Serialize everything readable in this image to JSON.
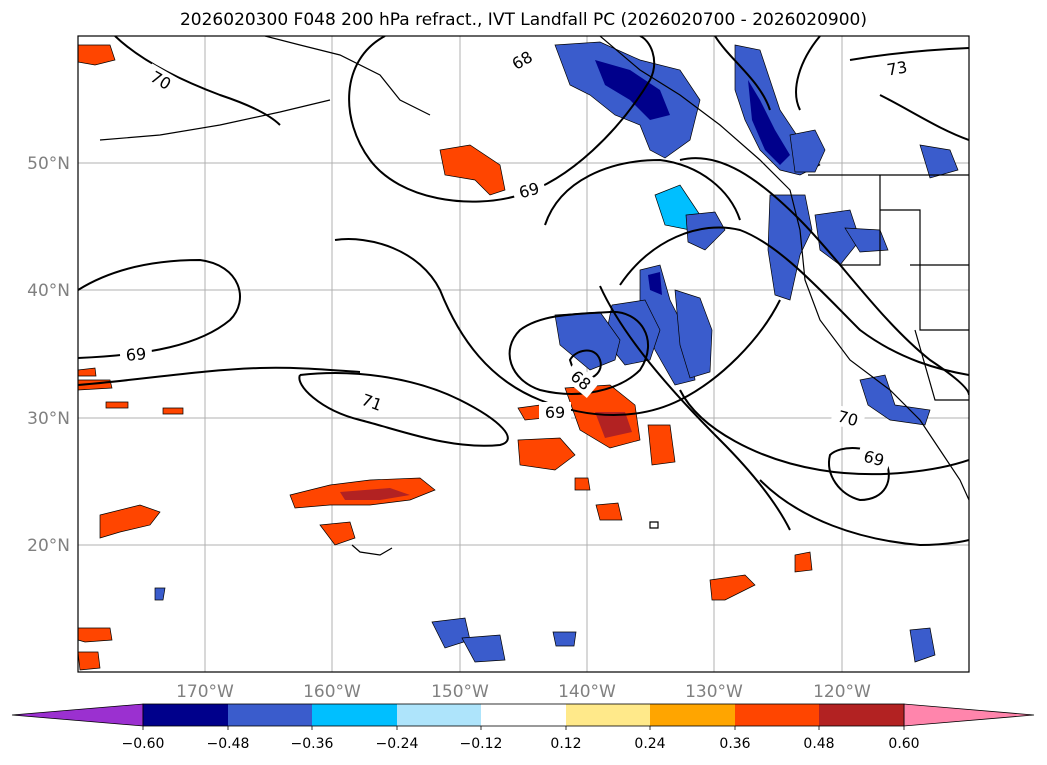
{
  "title": "2026020300 F048 200 hPa refract., IVT Landfall PC (2026020700 - 2026020900)",
  "axes": {
    "lat_labels": [
      "50°N",
      "40°N",
      "30°N",
      "20°N"
    ],
    "lon_labels": [
      "170°W",
      "160°W",
      "150°W",
      "140°W",
      "130°W",
      "120°W"
    ]
  },
  "colorbar": {
    "ticks": [
      "−0.60",
      "−0.48",
      "−0.36",
      "−0.24",
      "−0.12",
      "0.12",
      "0.24",
      "0.36",
      "0.48",
      "0.60"
    ],
    "colors": [
      "#9b30d0",
      "#00008b",
      "#3a5ccc",
      "#00bfff",
      "#aee4fb",
      "#ffffff",
      "#ffe98a",
      "#ffa500",
      "#ff4500",
      "#b22222",
      "#ff85ac"
    ]
  },
  "contour_labels": [
    "70",
    "68",
    "69",
    "73",
    "69",
    "71",
    "68",
    "69",
    "70",
    "69"
  ]
}
